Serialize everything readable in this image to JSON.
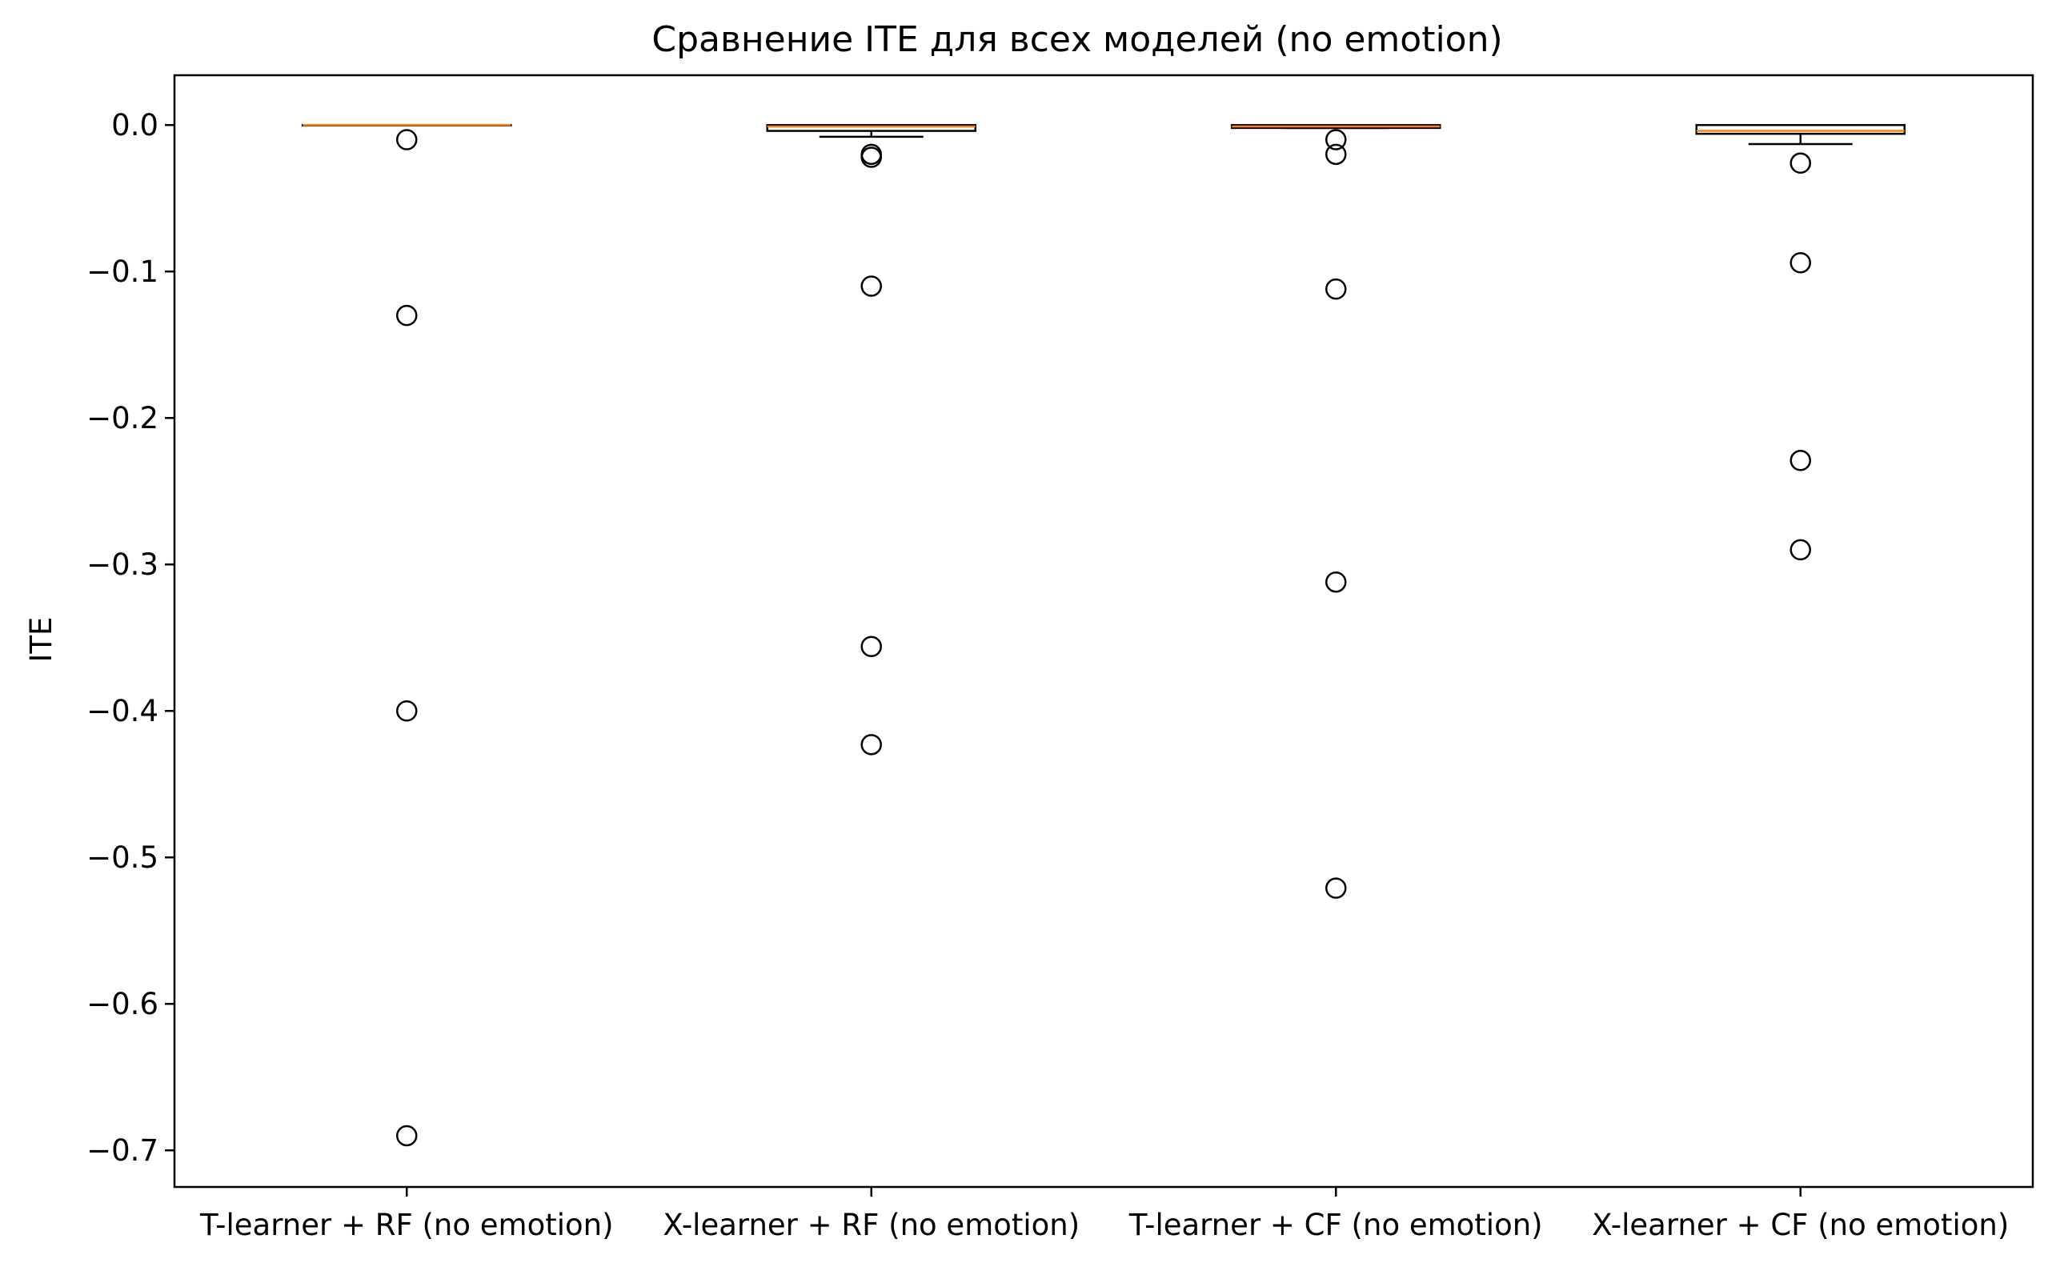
{
  "chart_data": {
    "type": "box",
    "title": "Сравнение ITE для всех моделей  (no emotion)",
    "xlabel": "",
    "ylabel": "ITE",
    "ylim": [
      -0.725,
      0.034
    ],
    "y_ticks": [
      0.0,
      -0.1,
      -0.2,
      -0.3,
      -0.4,
      -0.5,
      -0.6,
      -0.7
    ],
    "y_tick_labels": [
      "0.0",
      "−0.1",
      "−0.2",
      "−0.3",
      "−0.4",
      "−0.5",
      "−0.6",
      "−0.7"
    ],
    "grid": false,
    "legend": "none",
    "colors": {
      "box": "#000000",
      "median": "#ff7f0e",
      "flier": "#000000"
    },
    "categories": [
      "T-learner + RF (no emotion)",
      "X-learner + RF (no emotion)",
      "T-learner + CF (no emotion)",
      "X-learner + CF (no emotion)"
    ],
    "boxes": [
      {
        "whisker_low": 0.0,
        "q1": 0.0,
        "median": 0.0,
        "q3": 0.0,
        "whisker_high": 0.0,
        "fliers": [
          -0.01,
          -0.13,
          -0.4,
          -0.69
        ]
      },
      {
        "whisker_low": -0.008,
        "q1": -0.004,
        "median": -0.001,
        "q3": 0.0,
        "whisker_high": 0.0,
        "fliers": [
          -0.02,
          -0.022,
          -0.11,
          -0.356,
          -0.423
        ]
      },
      {
        "whisker_low": -0.002,
        "q1": -0.002,
        "median": -0.001,
        "q3": 0.0,
        "whisker_high": 0.0,
        "fliers": [
          -0.01,
          -0.02,
          -0.112,
          -0.312,
          -0.521
        ]
      },
      {
        "whisker_low": -0.013,
        "q1": -0.006,
        "median": -0.004,
        "q3": 0.0,
        "whisker_high": 0.0,
        "fliers": [
          -0.026,
          -0.094,
          -0.229,
          -0.29
        ]
      }
    ]
  }
}
